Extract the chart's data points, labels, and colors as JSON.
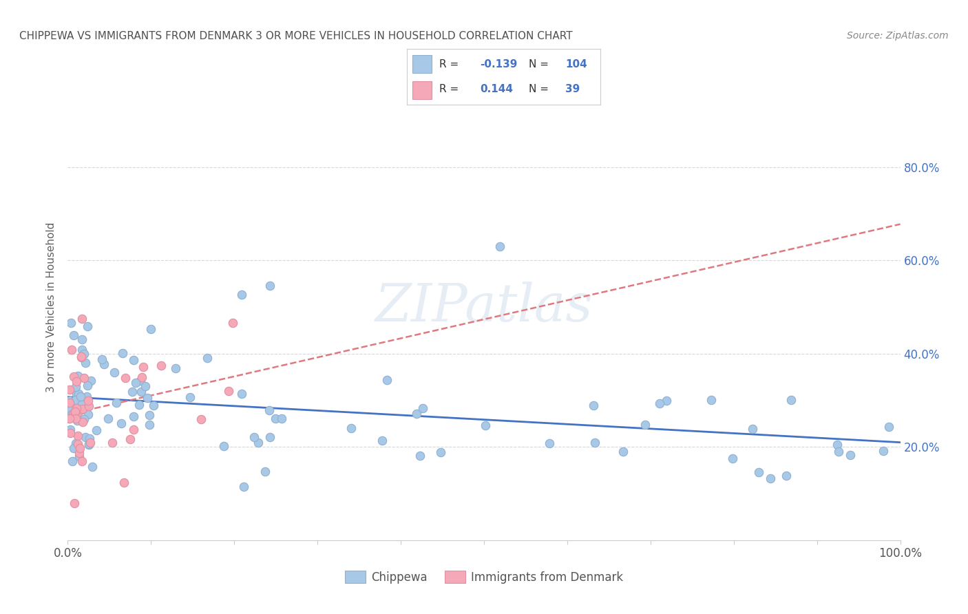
{
  "title": "CHIPPEWA VS IMMIGRANTS FROM DENMARK 3 OR MORE VEHICLES IN HOUSEHOLD CORRELATION CHART",
  "source": "Source: ZipAtlas.com",
  "ylabel": "3 or more Vehicles in Household",
  "chippewa_R": "-0.139",
  "chippewa_N": "104",
  "denmark_R": "0.144",
  "denmark_N": "39",
  "legend_labels": [
    "Chippewa",
    "Immigrants from Denmark"
  ],
  "chippewa_color": "#a8c8e8",
  "denmark_color": "#f4a8b8",
  "trendline_chippewa_color": "#4472c4",
  "trendline_denmark_color": "#e07880",
  "watermark": "ZIPatlas",
  "background_color": "#ffffff",
  "title_color": "#505050",
  "source_color": "#888888",
  "right_tick_color": "#4472c4",
  "ylabel_color": "#606060",
  "grid_color": "#d8d8d8",
  "xlim": [
    0.0,
    1.0
  ],
  "ylim": [
    0.0,
    1.0
  ],
  "ytick_vals": [
    0.2,
    0.4,
    0.6,
    0.8
  ],
  "yticklabels": [
    "20.0%",
    "40.0%",
    "60.0%",
    "80.0%"
  ]
}
